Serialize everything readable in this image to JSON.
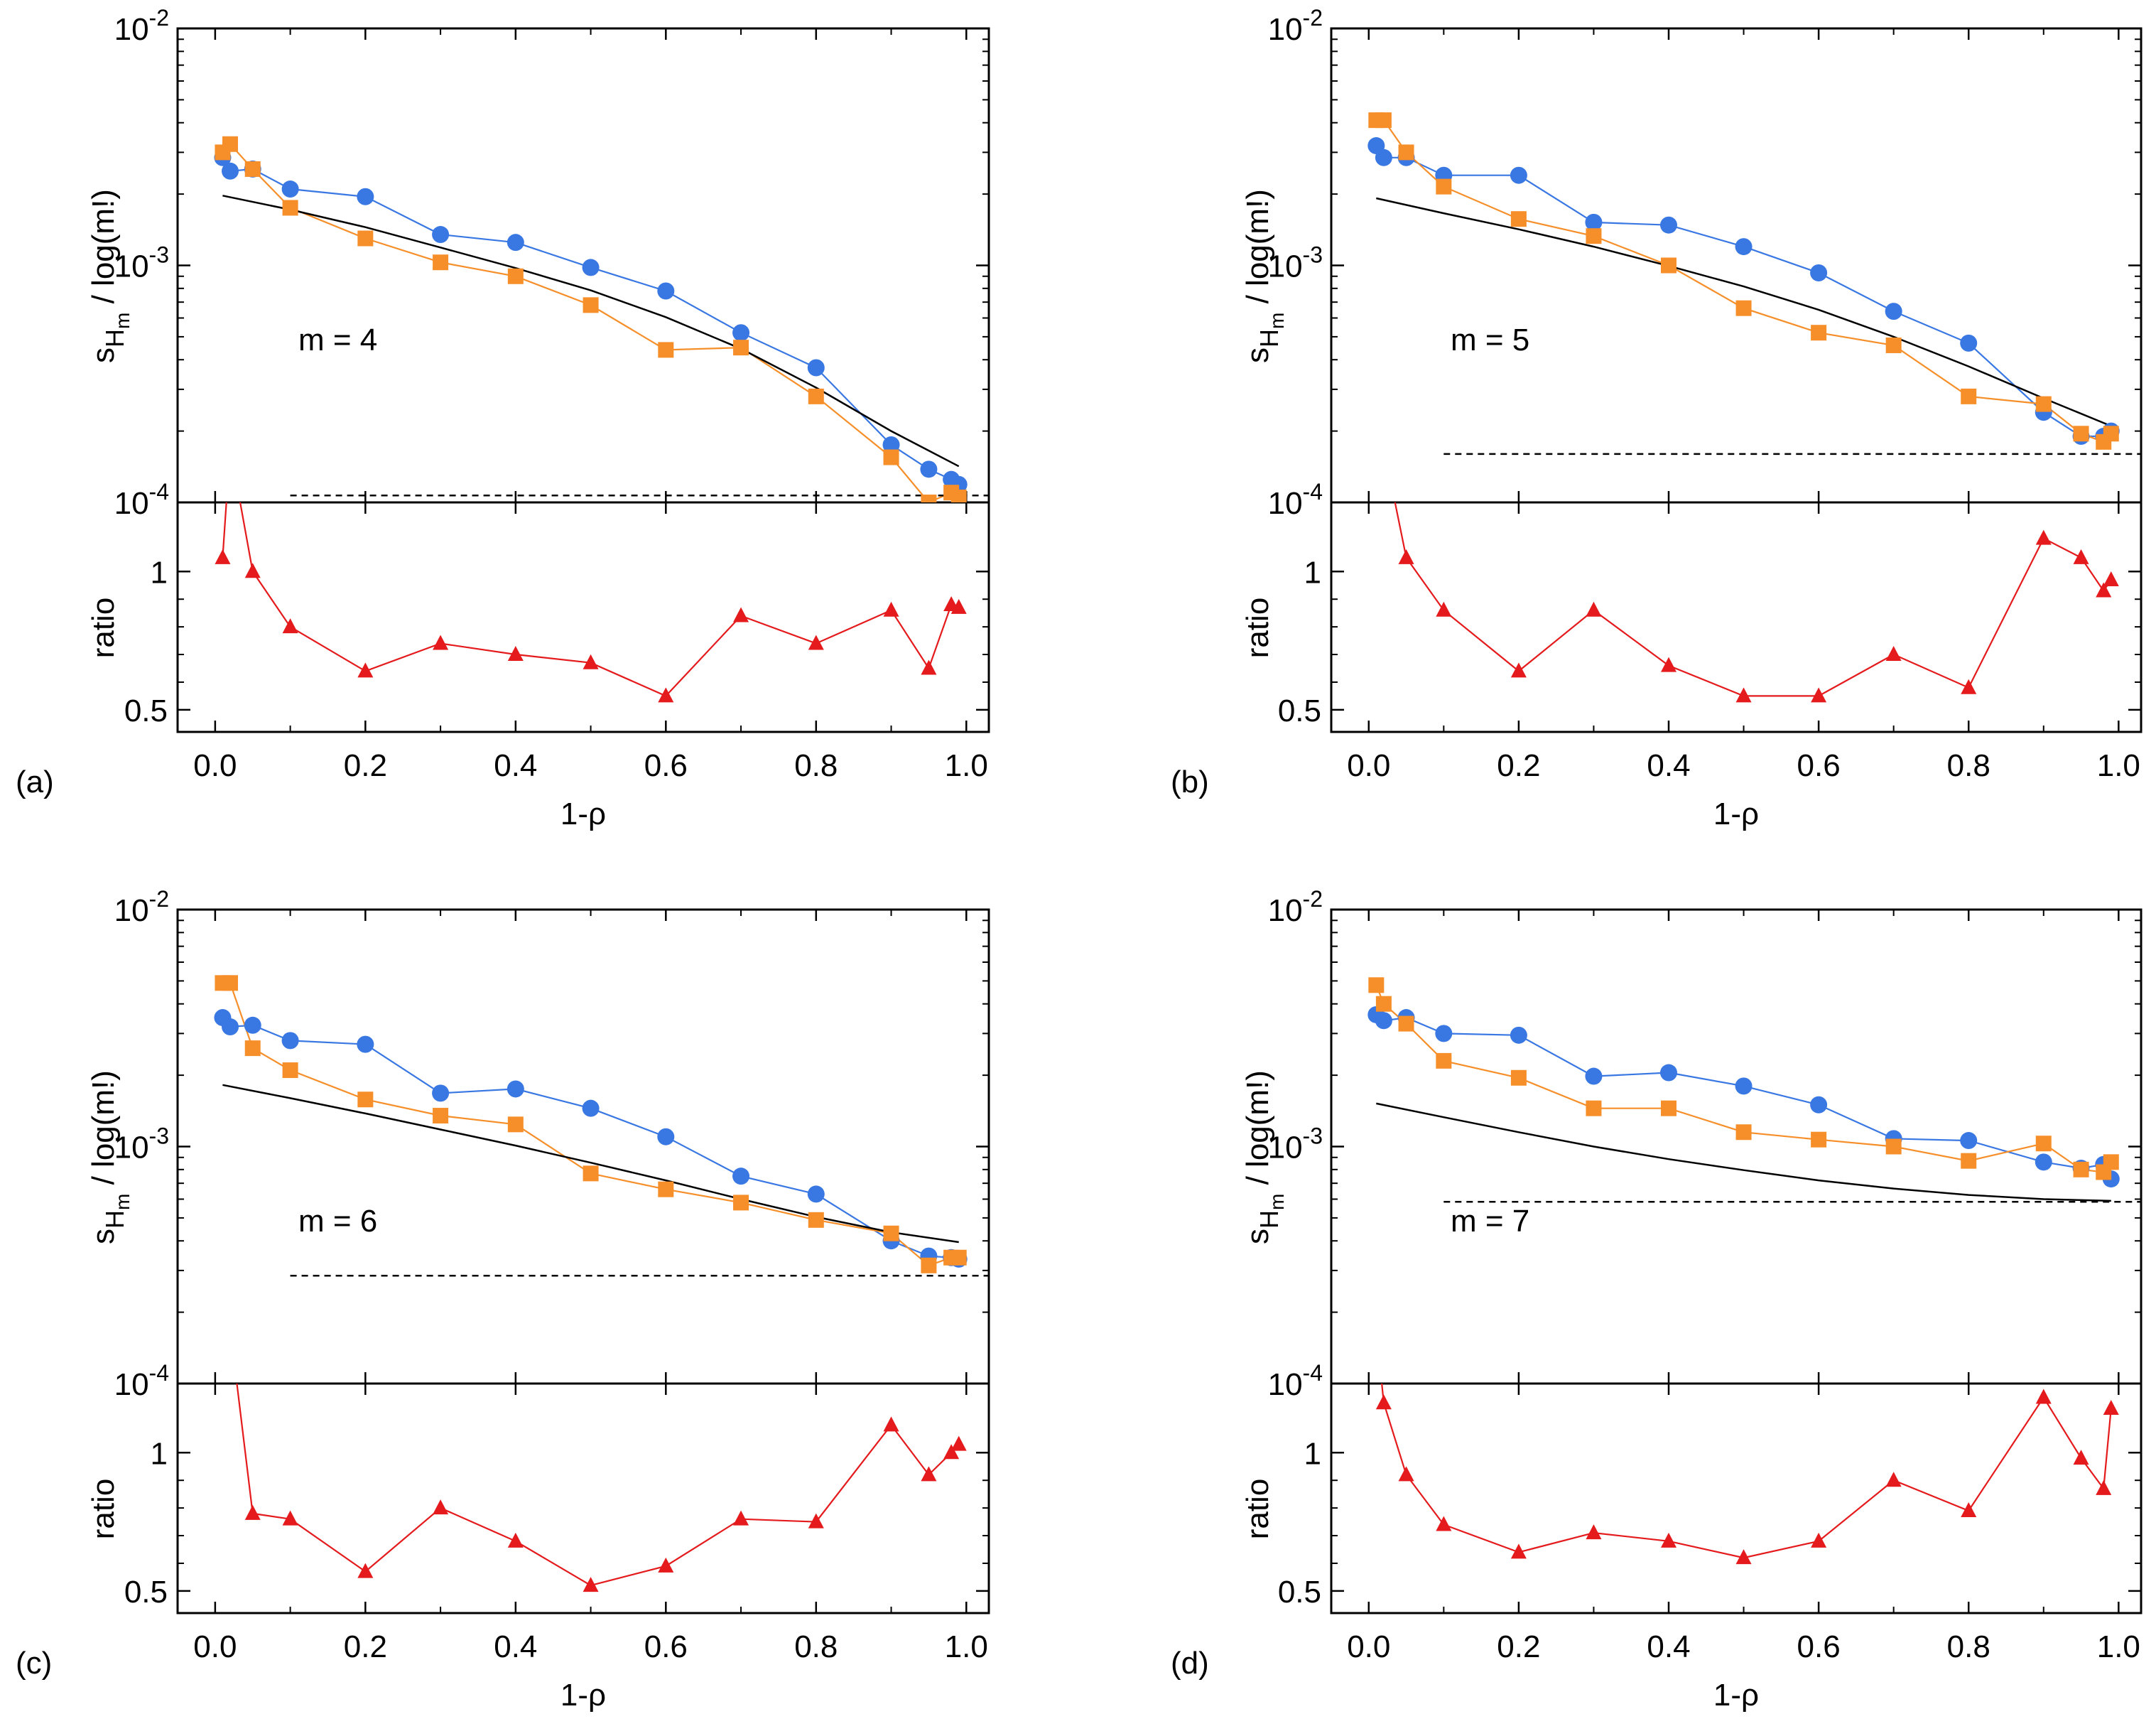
{
  "figure": {
    "colors": {
      "blue": "#3977e3",
      "orange": "#f68f2a",
      "red": "#e41a1c",
      "black": "#000000"
    }
  },
  "chart_data": [
    {
      "type": "line",
      "panel_label": "(a)",
      "annotation": "m = 4",
      "xlabel": "1-ρ",
      "ylabel": "s_Ĥm / log(m!)",
      "ylabel_prefix": "s",
      "ylabel_hat_letter": "H",
      "ylabel_subscript": "m",
      "ylabel_suffix": "/ log(m!)",
      "ylim": [
        0.0001,
        0.01
      ],
      "yscale": "log",
      "xlim": [
        -0.05,
        1.03
      ],
      "x_ticks": [
        "0.0",
        "0.2",
        "0.4",
        "0.6",
        "0.8",
        "1.0"
      ],
      "y_ticks": [
        {
          "base": "10",
          "exp": "-2"
        },
        {
          "base": "10",
          "exp": "-3"
        },
        {
          "base": "10",
          "exp": "-4"
        }
      ],
      "series": [
        {
          "color": "#3977e3",
          "marker": "circle",
          "x": [
            0.01,
            0.02,
            0.05,
            0.1,
            0.2,
            0.3,
            0.4,
            0.5,
            0.6,
            0.7,
            0.8,
            0.9,
            0.95,
            0.98,
            0.99
          ],
          "y": [
            0.00285,
            0.0025,
            0.00255,
            0.0021,
            0.00195,
            0.00135,
            0.00125,
            0.00098,
            0.00078,
            0.00052,
            0.00037,
            0.000175,
            0.000138,
            0.000125,
            0.000119
          ]
        },
        {
          "color": "#f68f2a",
          "marker": "square",
          "x": [
            0.01,
            0.02,
            0.05,
            0.1,
            0.2,
            0.3,
            0.4,
            0.5,
            0.6,
            0.7,
            0.8,
            0.9,
            0.95,
            0.98,
            0.99
          ],
          "y": [
            0.003,
            0.00325,
            0.00255,
            0.00175,
            0.0013,
            0.00103,
            0.0009,
            0.00068,
            0.00044,
            0.00045,
            0.00028,
            0.000155,
            0.0001,
            0.00011,
            0.000105
          ]
        },
        {
          "color": "#000000",
          "marker": "none",
          "x": [
            0.01,
            0.1,
            0.2,
            0.3,
            0.4,
            0.5,
            0.6,
            0.7,
            0.8,
            0.9,
            0.99
          ],
          "y": [
            0.00197,
            0.00172,
            0.00145,
            0.00119,
            0.000975,
            0.000785,
            0.000605,
            0.000445,
            0.000305,
            0.0002,
            0.000142
          ]
        },
        {
          "color": "#000000",
          "marker": "none",
          "dash": true,
          "x": [
            0.1,
            1.03
          ],
          "y": [
            0.000107,
            0.000107
          ]
        }
      ],
      "ratio": {
        "ylabel": "ratio",
        "ylim": [
          0.42,
          1.25
        ],
        "y_ticks": [
          "0.5",
          "1"
        ],
        "color": "#e41a1c",
        "marker": "triangle",
        "x": [
          0.01,
          0.02,
          0.05,
          0.1,
          0.2,
          0.3,
          0.4,
          0.5,
          0.6,
          0.7,
          0.8,
          0.9,
          0.95,
          0.98,
          0.99
        ],
        "y": [
          1.05,
          1.45,
          1.0,
          0.8,
          0.64,
          0.74,
          0.7,
          0.67,
          0.55,
          0.84,
          0.74,
          0.86,
          0.65,
          0.88,
          0.87
        ]
      }
    },
    {
      "type": "line",
      "panel_label": "(b)",
      "annotation": "m = 5",
      "xlabel": "1-ρ",
      "ylabel": "s_Ĥm / log(m!)",
      "ylabel_prefix": "s",
      "ylabel_hat_letter": "H",
      "ylabel_subscript": "m",
      "ylabel_suffix": "/ log(m!)",
      "ylim": [
        0.0001,
        0.01
      ],
      "yscale": "log",
      "xlim": [
        -0.05,
        1.03
      ],
      "x_ticks": [
        "0.0",
        "0.2",
        "0.4",
        "0.6",
        "0.8",
        "1.0"
      ],
      "y_ticks": [
        {
          "base": "10",
          "exp": "-2"
        },
        {
          "base": "10",
          "exp": "-3"
        },
        {
          "base": "10",
          "exp": "-4"
        }
      ],
      "series": [
        {
          "color": "#3977e3",
          "marker": "circle",
          "x": [
            0.01,
            0.02,
            0.05,
            0.1,
            0.2,
            0.3,
            0.4,
            0.5,
            0.6,
            0.7,
            0.8,
            0.9,
            0.95,
            0.98,
            0.99
          ],
          "y": [
            0.0032,
            0.00285,
            0.00285,
            0.0024,
            0.0024,
            0.00152,
            0.00148,
            0.0012,
            0.00093,
            0.00064,
            0.00047,
            0.00024,
            0.00019,
            0.00019,
            0.0002
          ]
        },
        {
          "color": "#f68f2a",
          "marker": "square",
          "x": [
            0.01,
            0.02,
            0.05,
            0.1,
            0.2,
            0.3,
            0.4,
            0.5,
            0.6,
            0.7,
            0.8,
            0.9,
            0.95,
            0.98,
            0.99
          ],
          "y": [
            0.0041,
            0.0041,
            0.003,
            0.00215,
            0.00157,
            0.00133,
            0.001,
            0.00066,
            0.00052,
            0.00046,
            0.00028,
            0.00026,
            0.000195,
            0.00018,
            0.000195
          ]
        },
        {
          "color": "#000000",
          "marker": "none",
          "x": [
            0.01,
            0.1,
            0.2,
            0.3,
            0.4,
            0.5,
            0.6,
            0.7,
            0.8,
            0.9,
            0.99
          ],
          "y": [
            0.00192,
            0.00166,
            0.00142,
            0.0012,
            0.000995,
            0.000815,
            0.00065,
            0.0005,
            0.000375,
            0.000275,
            0.00021
          ]
        },
        {
          "color": "#000000",
          "marker": "none",
          "dash": true,
          "x": [
            0.1,
            1.03
          ],
          "y": [
            0.00016,
            0.00016
          ]
        }
      ],
      "ratio": {
        "ylabel": "ratio",
        "ylim": [
          0.42,
          1.25
        ],
        "y_ticks": [
          "0.5",
          "1"
        ],
        "color": "#e41a1c",
        "marker": "triangle",
        "x": [
          0.02,
          0.05,
          0.1,
          0.2,
          0.3,
          0.4,
          0.5,
          0.6,
          0.7,
          0.8,
          0.9,
          0.95,
          0.98,
          0.99
        ],
        "y": [
          1.45,
          1.05,
          0.86,
          0.64,
          0.86,
          0.66,
          0.55,
          0.55,
          0.7,
          0.58,
          1.12,
          1.05,
          0.93,
          0.97
        ]
      }
    },
    {
      "type": "line",
      "panel_label": "(c)",
      "annotation": "m = 6",
      "xlabel": "1-ρ",
      "ylabel": "s_Ĥm / log(m!)",
      "ylabel_prefix": "s",
      "ylabel_hat_letter": "H",
      "ylabel_subscript": "m",
      "ylabel_suffix": "/ log(m!)",
      "ylim": [
        0.0001,
        0.01
      ],
      "yscale": "log",
      "xlim": [
        -0.05,
        1.03
      ],
      "x_ticks": [
        "0.0",
        "0.2",
        "0.4",
        "0.6",
        "0.8",
        "1.0"
      ],
      "y_ticks": [
        {
          "base": "10",
          "exp": "-2"
        },
        {
          "base": "10",
          "exp": "-3"
        },
        {
          "base": "10",
          "exp": "-4"
        }
      ],
      "series": [
        {
          "color": "#3977e3",
          "marker": "circle",
          "x": [
            0.01,
            0.02,
            0.05,
            0.1,
            0.2,
            0.3,
            0.4,
            0.5,
            0.6,
            0.7,
            0.8,
            0.9,
            0.95,
            0.98,
            0.99
          ],
          "y": [
            0.0035,
            0.0032,
            0.00325,
            0.0028,
            0.0027,
            0.00168,
            0.00175,
            0.00145,
            0.0011,
            0.00075,
            0.00063,
            0.0004,
            0.000345,
            0.00034,
            0.000335
          ]
        },
        {
          "color": "#f68f2a",
          "marker": "square",
          "x": [
            0.01,
            0.02,
            0.05,
            0.1,
            0.2,
            0.3,
            0.4,
            0.5,
            0.6,
            0.7,
            0.8,
            0.9,
            0.95,
            0.98,
            0.99
          ],
          "y": [
            0.0049,
            0.0049,
            0.0026,
            0.0021,
            0.00158,
            0.00135,
            0.00124,
            0.00077,
            0.00066,
            0.00058,
            0.00049,
            0.00043,
            0.000315,
            0.00034,
            0.00034
          ]
        },
        {
          "color": "#000000",
          "marker": "none",
          "x": [
            0.01,
            0.1,
            0.2,
            0.3,
            0.4,
            0.5,
            0.6,
            0.7,
            0.8,
            0.9,
            0.99
          ],
          "y": [
            0.00182,
            0.0016,
            0.00138,
            0.00118,
            0.00101,
            0.000855,
            0.00072,
            0.0006,
            0.000505,
            0.000435,
            0.000395
          ]
        },
        {
          "color": "#000000",
          "marker": "none",
          "dash": true,
          "x": [
            0.1,
            1.03
          ],
          "y": [
            0.000285,
            0.000285
          ]
        }
      ],
      "ratio": {
        "ylabel": "ratio",
        "ylim": [
          0.42,
          1.25
        ],
        "y_ticks": [
          "0.5",
          "1"
        ],
        "color": "#e41a1c",
        "marker": "triangle",
        "x": [
          0.02,
          0.05,
          0.1,
          0.2,
          0.3,
          0.4,
          0.5,
          0.6,
          0.7,
          0.8,
          0.9,
          0.95,
          0.98,
          0.99
        ],
        "y": [
          1.45,
          0.78,
          0.76,
          0.57,
          0.8,
          0.68,
          0.52,
          0.59,
          0.76,
          0.75,
          1.1,
          0.92,
          1.0,
          1.03
        ]
      }
    },
    {
      "type": "line",
      "panel_label": "(d)",
      "annotation": "m = 7",
      "xlabel": "1-ρ",
      "ylabel": "s_Ĥm / log(m!)",
      "ylabel_prefix": "s",
      "ylabel_hat_letter": "H",
      "ylabel_subscript": "m",
      "ylabel_suffix": "/ log(m!)",
      "ylim": [
        0.0001,
        0.01
      ],
      "yscale": "log",
      "xlim": [
        -0.05,
        1.03
      ],
      "x_ticks": [
        "0.0",
        "0.2",
        "0.4",
        "0.6",
        "0.8",
        "1.0"
      ],
      "y_ticks": [
        {
          "base": "10",
          "exp": "-2"
        },
        {
          "base": "10",
          "exp": "-3"
        },
        {
          "base": "10",
          "exp": "-4"
        }
      ],
      "series": [
        {
          "color": "#3977e3",
          "marker": "circle",
          "x": [
            0.01,
            0.02,
            0.05,
            0.1,
            0.2,
            0.3,
            0.4,
            0.5,
            0.6,
            0.7,
            0.8,
            0.9,
            0.95,
            0.98,
            0.99
          ],
          "y": [
            0.0036,
            0.0034,
            0.0035,
            0.003,
            0.00295,
            0.00198,
            0.00205,
            0.0018,
            0.0015,
            0.00108,
            0.00106,
            0.00086,
            0.00081,
            0.00084,
            0.00073
          ]
        },
        {
          "color": "#f68f2a",
          "marker": "square",
          "x": [
            0.01,
            0.02,
            0.05,
            0.1,
            0.2,
            0.3,
            0.4,
            0.5,
            0.6,
            0.7,
            0.8,
            0.9,
            0.95,
            0.98,
            0.99
          ],
          "y": [
            0.0048,
            0.004,
            0.0033,
            0.0023,
            0.00195,
            0.00145,
            0.00145,
            0.00115,
            0.00107,
            0.001,
            0.00087,
            0.00103,
            0.0008,
            0.00078,
            0.00086
          ]
        },
        {
          "color": "#000000",
          "marker": "none",
          "x": [
            0.01,
            0.1,
            0.2,
            0.3,
            0.4,
            0.5,
            0.6,
            0.7,
            0.8,
            0.9,
            0.99
          ],
          "y": [
            0.00152,
            0.00133,
            0.00115,
            0.001,
            0.000885,
            0.000795,
            0.00072,
            0.000665,
            0.000625,
            0.0006,
            0.00059
          ]
        },
        {
          "color": "#000000",
          "marker": "none",
          "dash": true,
          "x": [
            0.1,
            1.03
          ],
          "y": [
            0.000585,
            0.000585
          ]
        }
      ],
      "ratio": {
        "ylabel": "ratio",
        "ylim": [
          0.42,
          1.25
        ],
        "y_ticks": [
          "0.5",
          "1"
        ],
        "color": "#e41a1c",
        "marker": "triangle",
        "x": [
          0.01,
          0.02,
          0.05,
          0.1,
          0.2,
          0.3,
          0.4,
          0.5,
          0.6,
          0.7,
          0.8,
          0.9,
          0.95,
          0.98,
          0.99
        ],
        "y": [
          1.45,
          1.18,
          0.92,
          0.74,
          0.64,
          0.71,
          0.68,
          0.62,
          0.68,
          0.9,
          0.79,
          1.2,
          0.98,
          0.87,
          1.16
        ]
      }
    }
  ]
}
